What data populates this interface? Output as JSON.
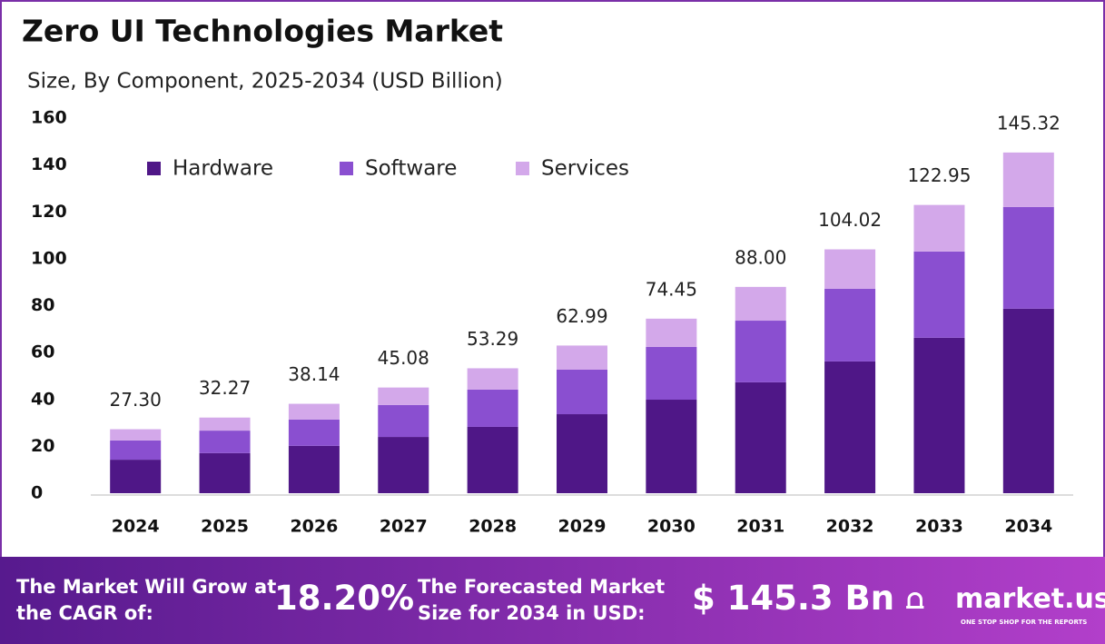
{
  "chart_data": {
    "type": "stacked-bar",
    "title": "Zero UI Technologies Market",
    "subtitle": "Size, By  Component, 2025-2034 (USD Billion)",
    "categories": [
      "2024",
      "2025",
      "2026",
      "2027",
      "2028",
      "2029",
      "2030",
      "2031",
      "2032",
      "2033",
      "2034"
    ],
    "series": [
      {
        "name": "Hardware",
        "color": "#4f1787",
        "values": [
          14.3,
          17.1,
          20.2,
          24.0,
          28.3,
          33.7,
          39.9,
          47.3,
          56.2,
          66.3,
          78.7
        ]
      },
      {
        "name": "Software",
        "color": "#8a4fd0",
        "values": [
          8.2,
          9.6,
          11.2,
          13.6,
          15.9,
          19.0,
          22.5,
          26.3,
          31.0,
          36.8,
          43.4
        ]
      },
      {
        "name": "Services",
        "color": "#d3a8ea",
        "values": [
          4.8,
          5.57,
          6.74,
          7.48,
          9.09,
          10.29,
          12.05,
          14.4,
          16.82,
          19.85,
          23.22
        ]
      }
    ],
    "totals": {
      "values": [
        27.3,
        32.27,
        38.14,
        45.08,
        53.29,
        62.99,
        74.45,
        88,
        104.02,
        122.95,
        145.32
      ],
      "value_labels": [
        "27.30",
        "32.27",
        "38.14",
        "45.08",
        "53.29",
        "62.99",
        "74.45",
        "88.00",
        "104.02",
        "122.95",
        "145.32"
      ]
    },
    "ylim": [
      0,
      160
    ],
    "yticks": [
      0,
      20,
      40,
      60,
      80,
      100,
      120,
      140,
      160
    ],
    "grid": false,
    "legend": "top-left"
  },
  "footer": {
    "cagr_text": "The Market Will Grow at the CAGR of:",
    "cagr": "18.20%",
    "forecast_text": "The Forecasted Market Size for 2034 in USD:",
    "forecast": "$ 145.3 Bn",
    "brand": "market.us",
    "tagline": "ONE STOP SHOP FOR THE REPORTS"
  }
}
